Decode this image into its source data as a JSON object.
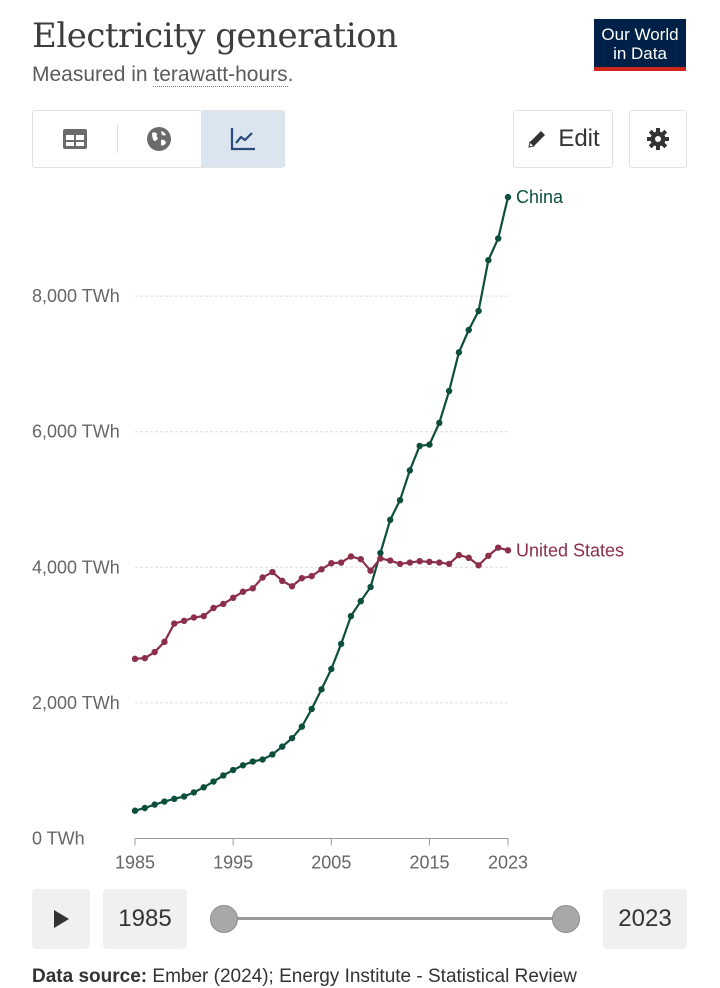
{
  "header": {
    "title": "Electricity generation",
    "subtitle_prefix": "Measured in ",
    "subtitle_unit": "terawatt-hours",
    "subtitle_suffix": ".",
    "logo_line1": "Our World",
    "logo_line2": "in Data"
  },
  "toolbar": {
    "tabs": [
      {
        "icon": "table-icon"
      },
      {
        "icon": "globe-icon"
      },
      {
        "icon": "line-chart-icon",
        "active": true
      }
    ],
    "edit_label": "Edit",
    "settings_icon": "gear-icon"
  },
  "timeline": {
    "start_year": "1985",
    "end_year": "2023",
    "play_icon": "play-icon"
  },
  "footer": {
    "label": "Data source:",
    "text": "Ember (2024); Energy Institute - Statistical Review"
  },
  "colors": {
    "china": "#0d4f3c",
    "united_states": "#8b2f4b",
    "grid": "#dddddd",
    "accent": "#ce261e",
    "logo_bg": "#002147"
  },
  "chart_data": {
    "type": "line",
    "title": "Electricity generation",
    "subtitle": "Measured in terawatt-hours.",
    "xlim": [
      1985,
      2023
    ],
    "ylim": [
      0,
      9500
    ],
    "grid": "horizontal",
    "legend": "inline labels at line ends",
    "x_ticks": [
      "1985",
      "1995",
      "2005",
      "2015",
      "2023"
    ],
    "y_ticks": [
      {
        "value": 0,
        "label": "0 TWh"
      },
      {
        "value": 2000,
        "label": "2,000 TWh"
      },
      {
        "value": 4000,
        "label": "4,000 TWh"
      },
      {
        "value": 6000,
        "label": "6,000 TWh"
      },
      {
        "value": 8000,
        "label": "8,000 TWh"
      }
    ],
    "x": [
      1985,
      1986,
      1987,
      1988,
      1989,
      1990,
      1991,
      1992,
      1993,
      1994,
      1995,
      1996,
      1997,
      1998,
      1999,
      2000,
      2001,
      2002,
      2003,
      2004,
      2005,
      2006,
      2007,
      2008,
      2009,
      2010,
      2011,
      2012,
      2013,
      2014,
      2015,
      2016,
      2017,
      2018,
      2019,
      2020,
      2021,
      2022,
      2023
    ],
    "series": [
      {
        "name": "China",
        "color": "#0d4f3c",
        "values": [
          410,
          450,
          500,
          545,
          585,
          620,
          680,
          755,
          840,
          930,
          1010,
          1080,
          1135,
          1165,
          1240,
          1355,
          1480,
          1650,
          1910,
          2200,
          2500,
          2870,
          3280,
          3500,
          3710,
          4210,
          4700,
          4990,
          5430,
          5790,
          5810,
          6130,
          6600,
          7170,
          7500,
          7780,
          8530,
          8850,
          9460
        ]
      },
      {
        "name": "United States",
        "color": "#8b2f4b",
        "values": [
          2650,
          2660,
          2750,
          2900,
          3170,
          3210,
          3260,
          3280,
          3400,
          3460,
          3550,
          3640,
          3690,
          3850,
          3930,
          3800,
          3720,
          3840,
          3870,
          3970,
          4060,
          4070,
          4160,
          4120,
          3950,
          4130,
          4100,
          4050,
          4070,
          4090,
          4080,
          4070,
          4050,
          4180,
          4140,
          4030,
          4170,
          4290,
          4250
        ]
      }
    ]
  }
}
